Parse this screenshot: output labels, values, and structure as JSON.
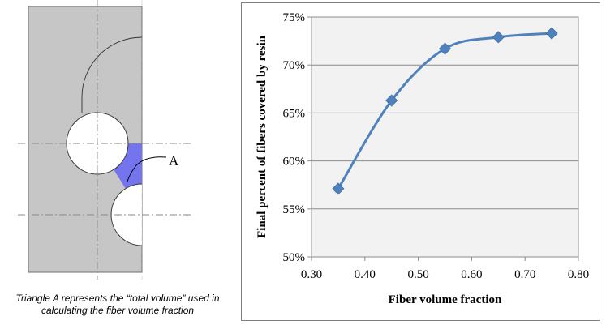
{
  "diagram": {
    "label_a": "A",
    "caption_line1": "Triangle A represents the “total volume” used in",
    "caption_line2": "calculating the fiber volume fraction",
    "colors": {
      "body": "#c6c6c6",
      "triangle": "#7070f0",
      "fiber": "#ffffff"
    }
  },
  "chart_data": {
    "type": "line",
    "x": [
      0.35,
      0.45,
      0.55,
      0.65,
      0.75
    ],
    "series": [
      {
        "values": [
          0.571,
          0.663,
          0.717,
          0.729,
          0.733
        ],
        "color": "#4f81bd",
        "marker": "diamond",
        "smooth": true
      }
    ],
    "xlabel": "Fiber volume fraction",
    "ylabel": "Final percent of fibers covered by resin",
    "xlim": [
      0.3,
      0.8
    ],
    "ylim": [
      0.5,
      0.75
    ],
    "xticks": [
      "0.30",
      "0.40",
      "0.50",
      "0.60",
      "0.70",
      "0.80"
    ],
    "yticks": [
      "50%",
      "55%",
      "60%",
      "65%",
      "70%",
      "75%"
    ],
    "grid": "horizontal",
    "plot_background": "#f2f2f2"
  }
}
